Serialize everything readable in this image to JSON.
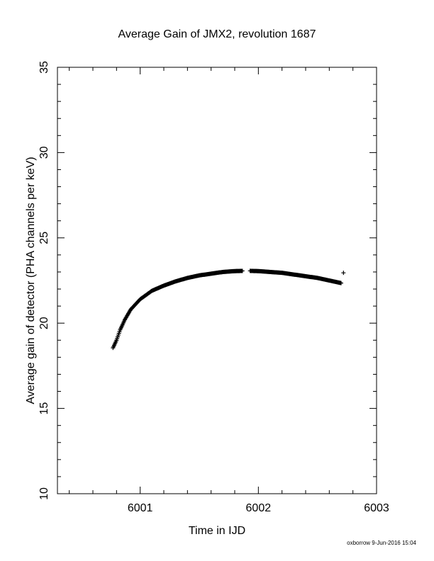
{
  "chart_data": {
    "type": "scatter",
    "title": "Average Gain of JMX2, revolution 1687",
    "xlabel": "Time in IJD",
    "ylabel": "Average gain of detector (PHA channels per keV)",
    "xlim": [
      6000.3,
      6003.0
    ],
    "ylim": [
      10,
      35
    ],
    "x_ticks": [
      6001,
      6002,
      6003
    ],
    "y_ticks": [
      10,
      15,
      20,
      25,
      30,
      35
    ],
    "grid": false,
    "marker": "plus",
    "marker_color": "#000000",
    "curve_samples": [
      [
        6000.77,
        18.55
      ],
      [
        6000.8,
        19.0
      ],
      [
        6000.83,
        19.6
      ],
      [
        6000.87,
        20.2
      ],
      [
        6000.92,
        20.8
      ],
      [
        6001.0,
        21.4
      ],
      [
        6001.1,
        21.9
      ],
      [
        6001.2,
        22.2
      ],
      [
        6001.3,
        22.45
      ],
      [
        6001.4,
        22.65
      ],
      [
        6001.5,
        22.8
      ],
      [
        6001.6,
        22.9
      ],
      [
        6001.7,
        23.0
      ],
      [
        6001.8,
        23.05
      ],
      [
        6001.9,
        23.07
      ],
      [
        6002.0,
        23.05
      ],
      [
        6002.1,
        23.0
      ],
      [
        6002.2,
        22.95
      ],
      [
        6002.3,
        22.85
      ],
      [
        6002.4,
        22.75
      ],
      [
        6002.5,
        22.65
      ],
      [
        6002.6,
        22.5
      ],
      [
        6002.7,
        22.35
      ]
    ],
    "gap": [
      6001.87,
      6001.93
    ],
    "outliers": [
      [
        6002.72,
        22.95
      ]
    ]
  },
  "footer": {
    "credit": "oxborrow  9-Jun-2016 15:04"
  }
}
